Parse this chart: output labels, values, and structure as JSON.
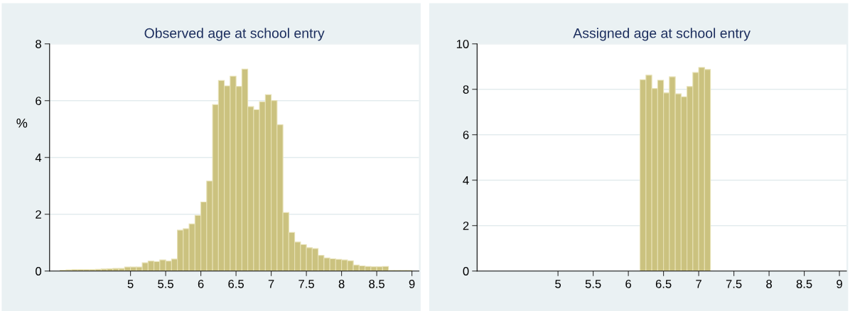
{
  "chart_data": [
    {
      "type": "histogram",
      "title": "Observed age at school entry",
      "ylabel": "%",
      "color": "#cbc27f",
      "bins": [
        4,
        4.0833,
        4.1667,
        4.25,
        4.3333,
        4.4167,
        4.5,
        4.5833,
        4.6667,
        4.75,
        4.8333,
        4.9167,
        5,
        5.0833,
        5.1667,
        5.25,
        5.3333,
        5.4167,
        5.5,
        5.5833,
        5.6667,
        5.75,
        5.8333,
        5.9167,
        6,
        6.0833,
        6.1667,
        6.25,
        6.3333,
        6.4167,
        6.5,
        6.5833,
        6.6667,
        6.75,
        6.8333,
        6.9167,
        7,
        7.0833,
        7.1667,
        7.25,
        7.3333,
        7.4167,
        7.5,
        7.5833,
        7.6667,
        7.75,
        7.8333,
        7.9167,
        8,
        8.0833,
        8.1667,
        8.25,
        8.3333,
        8.4167,
        8.5,
        8.5833,
        8.6667,
        8.75,
        8.8333,
        8.9167,
        9
      ],
      "values": [
        0.03,
        0.04,
        0.05,
        0.05,
        0.05,
        0.05,
        0.06,
        0.07,
        0.08,
        0.09,
        0.09,
        0.14,
        0.14,
        0.14,
        0.29,
        0.35,
        0.33,
        0.39,
        0.35,
        0.42,
        1.44,
        1.49,
        1.66,
        1.96,
        2.43,
        3.17,
        5.86,
        6.71,
        6.52,
        6.86,
        6.5,
        7.11,
        5.79,
        5.68,
        5.96,
        6.21,
        6.0,
        5.15,
        2.06,
        1.36,
        1.02,
        0.93,
        0.82,
        0.79,
        0.55,
        0.46,
        0.43,
        0.41,
        0.39,
        0.36,
        0.21,
        0.18,
        0.16,
        0.15,
        0.15,
        0.16,
        0.02,
        0.02,
        0.02,
        0.02
      ],
      "xlim": [
        3.85,
        9.1
      ],
      "xticks": [
        5,
        5.5,
        6,
        6.5,
        7,
        7.5,
        8,
        8.5,
        9
      ],
      "ylim": [
        0,
        8
      ],
      "yticks": [
        0,
        2,
        4,
        6,
        8
      ],
      "grid": "y"
    },
    {
      "type": "histogram",
      "title": "Assigned age at school entry",
      "color": "#cbc27f",
      "bins": [
        6.1667,
        6.25,
        6.3333,
        6.4167,
        6.5,
        6.5833,
        6.6667,
        6.75,
        6.8333,
        6.9167,
        7,
        7.0833,
        7.1667
      ],
      "values": [
        8.42,
        8.62,
        8.03,
        8.4,
        7.84,
        8.55,
        7.8,
        7.67,
        8.12,
        8.74,
        8.96,
        8.87
      ],
      "xlim": [
        3.85,
        9.1
      ],
      "xticks": [
        5,
        5.5,
        6,
        6.5,
        7,
        7.5,
        8,
        8.5,
        9
      ],
      "ylim": [
        0,
        10
      ],
      "yticks": [
        0,
        2,
        4,
        6,
        8,
        10
      ],
      "grid": "y"
    }
  ]
}
